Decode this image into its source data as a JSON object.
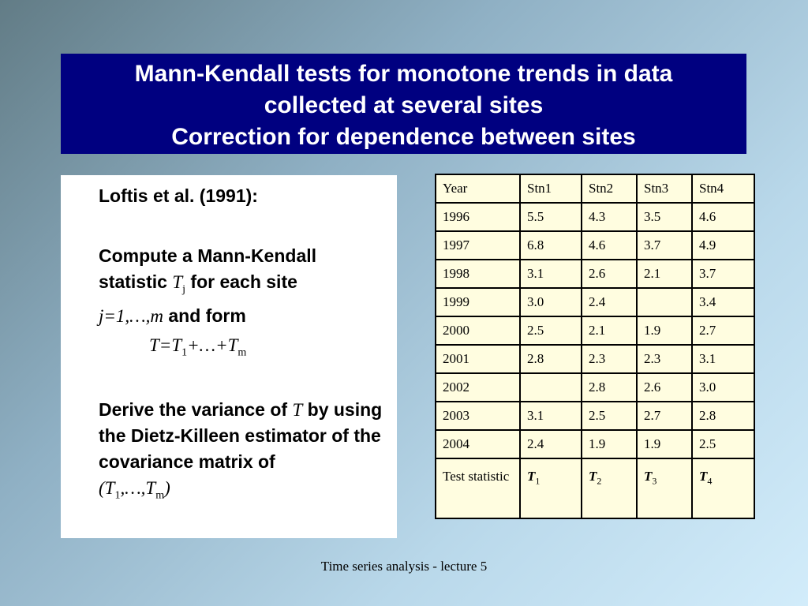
{
  "title": {
    "line1": "Mann-Kendall tests for monotone trends in data",
    "line2": "collected at several sites",
    "line3": "Correction for dependence between sites"
  },
  "left": {
    "ref": "Loftis et al. (1991):",
    "compute_prefix": "Compute a Mann-Kendall statistic ",
    "compute_var": "T",
    "compute_sub": "j",
    "compute_suffix": " for each site",
    "range": "j=1,…,m",
    "and_form": " and form",
    "formula_T": "T",
    "formula_eq": "=",
    "formula_T1": "T",
    "formula_sub1": "1",
    "formula_mid": "+…+",
    "formula_Tm": "T",
    "formula_subm": "m",
    "derive_prefix": "Derive the variance of ",
    "derive_T": "T",
    "derive_suffix": " by using the Dietz-Killeen estimator of the covariance matrix of",
    "vec_open": "(",
    "vec_T1": "T",
    "vec_sub1": "1",
    "vec_mid": ",…,",
    "vec_Tm": "T",
    "vec_subm": "m",
    "vec_close": ")"
  },
  "table": {
    "headers": [
      "Year",
      "Stn1",
      "Stn2",
      "Stn3",
      "Stn4"
    ],
    "rows": [
      [
        "1996",
        "5.5",
        "4.3",
        "3.5",
        "4.6"
      ],
      [
        "1997",
        "6.8",
        "4.6",
        "3.7",
        "4.9"
      ],
      [
        "1998",
        "3.1",
        "2.6",
        "2.1",
        "3.7"
      ],
      [
        "1999",
        "3.0",
        "2.4",
        "",
        "3.4"
      ],
      [
        "2000",
        "2.5",
        "2.1",
        "1.9",
        "2.7"
      ],
      [
        "2001",
        "2.8",
        "2.3",
        "2.3",
        "3.1"
      ],
      [
        "2002",
        "",
        "2.8",
        "2.6",
        "3.0"
      ],
      [
        "2003",
        "3.1",
        "2.5",
        "2.7",
        "2.8"
      ],
      [
        "2004",
        "2.4",
        "1.9",
        "1.9",
        "2.5"
      ]
    ],
    "last_row": {
      "label": "Test statistic",
      "cells": [
        {
          "var": "T",
          "sub": "1"
        },
        {
          "var": "T",
          "sub": "2"
        },
        {
          "var": "T",
          "sub": "3"
        },
        {
          "var": "T",
          "sub": "4"
        }
      ]
    }
  },
  "footer": "Time series analysis - lecture 5"
}
